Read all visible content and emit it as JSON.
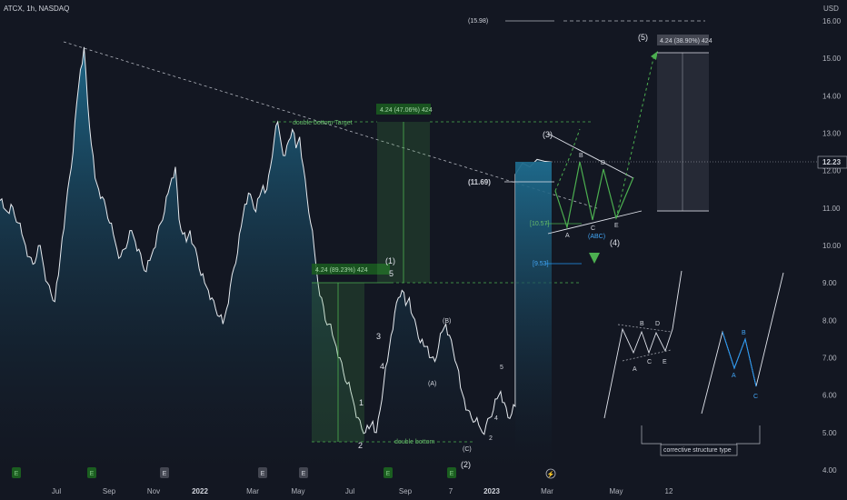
{
  "header": {
    "symbol": "ATCX, 1h, NASDAQ",
    "currency": "USD"
  },
  "chart_data": {
    "type": "area",
    "ylim": [
      4.0,
      16.0
    ],
    "y_ticks": [
      "16.00",
      "15.00",
      "14.00",
      "13.00",
      "12.00",
      "11.00",
      "10.00",
      "9.00",
      "8.00",
      "7.00",
      "6.00",
      "5.00",
      "4.00"
    ],
    "last_price": "12.23",
    "x_ticks": [
      "Jul",
      "Sep",
      "Nov",
      "2022",
      "Mar",
      "May",
      "Jul",
      "Sep",
      "7",
      "2023",
      "Mar",
      "May",
      "12"
    ],
    "series": [
      {
        "values": [
          11.2,
          11.0,
          10.9,
          11.1,
          10.8,
          10.6,
          10.3,
          10.0,
          9.7,
          9.5,
          9.7,
          10.0,
          9.4,
          9.0,
          8.7,
          8.5,
          9.2,
          10.2,
          11.0,
          11.8,
          12.5,
          13.8,
          14.7,
          15.3,
          13.8,
          12.7,
          11.8,
          11.5,
          11.3,
          11.0,
          10.6,
          10.3,
          9.9,
          9.7,
          9.9,
          10.1,
          10.4,
          10.1,
          9.9,
          9.5,
          9.3,
          9.6,
          9.9,
          10.3,
          10.6,
          10.9,
          11.4,
          11.8,
          12.1,
          10.7,
          10.3,
          10.1,
          10.4,
          10.0,
          9.7,
          9.2,
          9.0,
          8.8,
          8.6,
          8.3,
          8.1,
          7.9,
          8.3,
          8.9,
          9.4,
          9.8,
          10.5,
          11.1,
          11.4,
          11.2,
          10.9,
          11.3,
          11.6,
          11.5,
          12.1,
          12.8,
          13.3,
          12.7,
          12.4,
          12.8,
          13.1,
          12.6,
          12.9,
          12.1,
          11.3,
          10.6,
          9.9,
          9.0,
          8.6,
          8.0,
          7.9,
          7.6,
          7.3,
          7.0,
          6.6,
          6.3,
          6.1,
          5.7,
          5.4,
          5.1,
          5.0,
          5.1,
          5.3,
          5.0,
          5.6,
          6.3,
          6.9,
          7.6,
          8.2,
          8.6,
          8.8,
          8.4,
          8.6,
          8.1,
          7.8,
          7.4,
          7.3,
          7.3,
          7.0,
          6.9,
          7.3,
          7.7,
          7.9,
          7.6,
          7.2,
          6.8,
          6.2,
          5.9,
          5.6,
          5.4,
          5.3,
          5.2,
          5.0,
          5.2,
          5.4,
          5.6,
          5.9,
          6.1,
          5.8,
          5.4,
          5.5,
          5.7,
          11.9,
          12.2,
          12.1,
          12.3,
          12.25,
          12.23
        ]
      }
    ],
    "annotations": {
      "top_level": "(15.98)",
      "wave5_box": "4.24 (38.90%) 424",
      "wave3_box": "4.24 (47.06%) 424",
      "left_box": "4.24 (89.23%) 424",
      "double_bottom_target": "double bottom Target",
      "double_bottom": "double bottom",
      "level_1169": "(11.69)",
      "level_1057": "[10.57]",
      "level_953": "[9.53]",
      "corrective": "corrective structure type",
      "w1": "(1)",
      "w2": "(2)",
      "w3": "(3)",
      "w4": "(4)",
      "w5": "(5)",
      "i1": "1",
      "i2": "2",
      "i3": "3",
      "i4": "4",
      "i5": "5",
      "a": "(A)",
      "b": "(B)",
      "c": "(C)",
      "abc": "(ABC)",
      "A": "A",
      "B": "B",
      "C": "C",
      "D": "D",
      "E": "E",
      "s2": "2",
      "s4": "4",
      "s5": "5"
    }
  },
  "colors": {
    "bg": "#131722",
    "line": "#e8ecf1",
    "green": "#4caf50",
    "blue": "#2196f3",
    "fill_top": "#1e5a78",
    "fill_bottom": "#131722"
  },
  "events": [
    "E",
    "E",
    "E",
    "E",
    "E",
    "E",
    "E",
    "lightning"
  ]
}
